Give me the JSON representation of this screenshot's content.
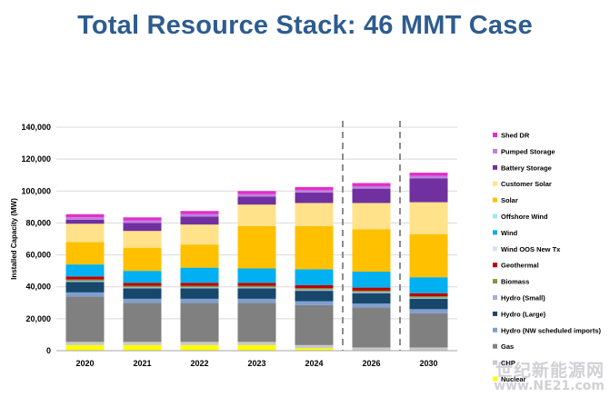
{
  "title": "Total Resource Stack: 46 MMT Case",
  "watermark": {
    "text_cn": "世纪新能源网",
    "url": "www.NE21.com"
  },
  "chart_data": {
    "type": "bar",
    "stacked": true,
    "title": "Total Resource Stack: 46 MMT Case",
    "ylabel": "Installed Capacity (MW)",
    "xlabel": "",
    "ylim": [
      0,
      140000
    ],
    "yticks": [
      0,
      20000,
      40000,
      60000,
      80000,
      100000,
      120000,
      140000
    ],
    "ytick_labels": [
      "0",
      "20,000",
      "40,000",
      "60,000",
      "80,000",
      "100,000",
      "120,000",
      "140,000"
    ],
    "categories": [
      "2020",
      "2021",
      "2022",
      "2023",
      "2024",
      "2026",
      "2030"
    ],
    "dashed_dividers_after": [
      "2024",
      "2026"
    ],
    "legend_position": "right",
    "series": [
      {
        "name": "Nuclear",
        "color": "#ffff00",
        "values": [
          3500,
          3500,
          3500,
          3500,
          1500,
          0,
          0
        ]
      },
      {
        "name": "CHP",
        "color": "#c8c8c8",
        "values": [
          2000,
          2000,
          2000,
          2000,
          2000,
          2000,
          2000
        ]
      },
      {
        "name": "Gas",
        "color": "#808080",
        "values": [
          28500,
          24500,
          24500,
          24500,
          25000,
          25000,
          21500
        ]
      },
      {
        "name": "Hydro (NW scheduled imports)",
        "color": "#7f9fd0",
        "values": [
          2500,
          2500,
          2500,
          2500,
          2500,
          2500,
          2500
        ]
      },
      {
        "name": "Hydro (Large)",
        "color": "#17476b",
        "values": [
          6500,
          6500,
          6500,
          6500,
          6500,
          6500,
          6500
        ]
      },
      {
        "name": "Hydro (Small)",
        "color": "#9fb4d6",
        "values": [
          800,
          800,
          800,
          800,
          800,
          800,
          800
        ]
      },
      {
        "name": "Biomass",
        "color": "#7a9a3a",
        "values": [
          800,
          800,
          800,
          800,
          800,
          800,
          800
        ]
      },
      {
        "name": "Geothermal",
        "color": "#c00000",
        "values": [
          1900,
          1900,
          1900,
          1900,
          1900,
          1900,
          1900
        ]
      },
      {
        "name": "Wind OOS New Tx",
        "color": "#d0e4f5",
        "values": [
          0,
          0,
          0,
          0,
          0,
          0,
          0
        ]
      },
      {
        "name": "Wind",
        "color": "#00b0f0",
        "values": [
          7500,
          7500,
          9500,
          9000,
          10000,
          10000,
          10000
        ]
      },
      {
        "name": "Offshore Wind",
        "color": "#9ee8e8",
        "values": [
          0,
          0,
          0,
          0,
          0,
          0,
          0
        ]
      },
      {
        "name": "Solar",
        "color": "#ffc000",
        "values": [
          14000,
          14500,
          14500,
          26500,
          27000,
          26500,
          27000
        ]
      },
      {
        "name": "Customer Solar",
        "color": "#ffe28a",
        "values": [
          11500,
          10500,
          12500,
          13500,
          14500,
          16500,
          20000
        ]
      },
      {
        "name": "Battery Storage",
        "color": "#7030a0",
        "values": [
          2500,
          5000,
          5000,
          5000,
          6500,
          9000,
          15000
        ]
      },
      {
        "name": "Pumped Storage",
        "color": "#c080e0",
        "values": [
          1500,
          1500,
          1500,
          1500,
          1500,
          1500,
          1500
        ]
      },
      {
        "name": "Shed DR",
        "color": "#e030c8",
        "values": [
          2000,
          2000,
          2000,
          2000,
          2000,
          2000,
          2000
        ]
      }
    ]
  }
}
